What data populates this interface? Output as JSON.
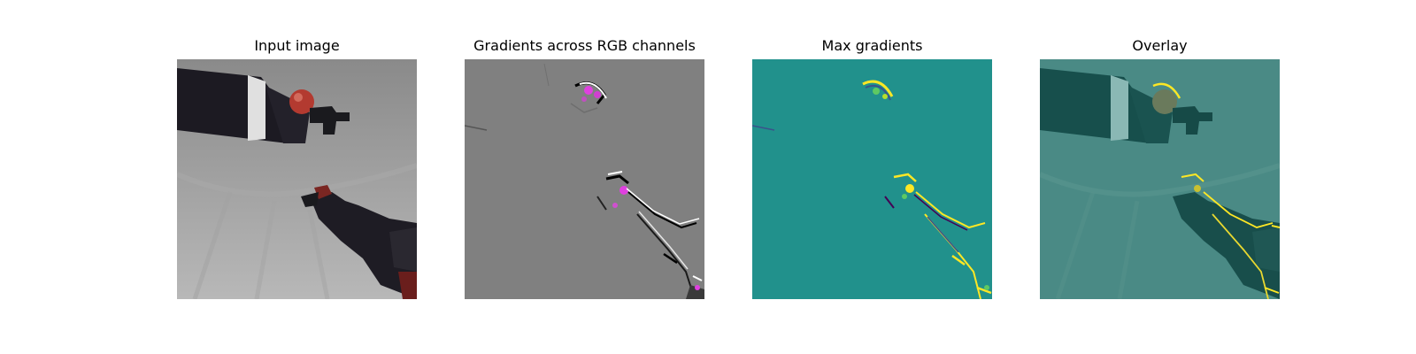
{
  "figure": {
    "panels": [
      {
        "title": "Input image"
      },
      {
        "title": "Gradients across RGB channels"
      },
      {
        "title": "Max gradients"
      },
      {
        "title": "Overlay"
      }
    ]
  },
  "colors": {
    "background": "#ffffff",
    "input_backdrop": "#b4b4b4",
    "robot_dark": "#1c1a22",
    "ball_red": "#b33a30",
    "gradient_gray": "#808080",
    "gradient_magenta": "#e040e0",
    "viridis_teal": "#21918c",
    "viridis_yellow": "#fde725",
    "overlay_teal": "#4a8a85",
    "overlay_dark": "#174f4c"
  }
}
